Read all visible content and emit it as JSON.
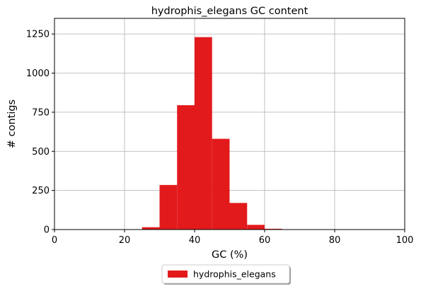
{
  "chart_data": {
    "type": "bar",
    "title": "hydrophis_elegans GC content",
    "xlabel": "GC (%)",
    "ylabel": "# contigs",
    "xlim": [
      0,
      100
    ],
    "ylim": [
      0,
      1350
    ],
    "xticks": [
      0,
      20,
      40,
      60,
      80,
      100
    ],
    "yticks": [
      0,
      250,
      500,
      750,
      1000,
      1250
    ],
    "grid": true,
    "legend_position": "bottom-center",
    "bin_width": 5,
    "series": [
      {
        "name": "hydrophis_elegans",
        "color": "#e31a1c",
        "bins": [
          {
            "x0": 25,
            "x1": 30,
            "value": 15
          },
          {
            "x0": 30,
            "x1": 35,
            "value": 285
          },
          {
            "x0": 35,
            "x1": 40,
            "value": 795
          },
          {
            "x0": 40,
            "x1": 45,
            "value": 1230
          },
          {
            "x0": 45,
            "x1": 50,
            "value": 580
          },
          {
            "x0": 50,
            "x1": 55,
            "value": 170
          },
          {
            "x0": 55,
            "x1": 60,
            "value": 30
          },
          {
            "x0": 60,
            "x1": 65,
            "value": 5
          }
        ]
      }
    ]
  }
}
